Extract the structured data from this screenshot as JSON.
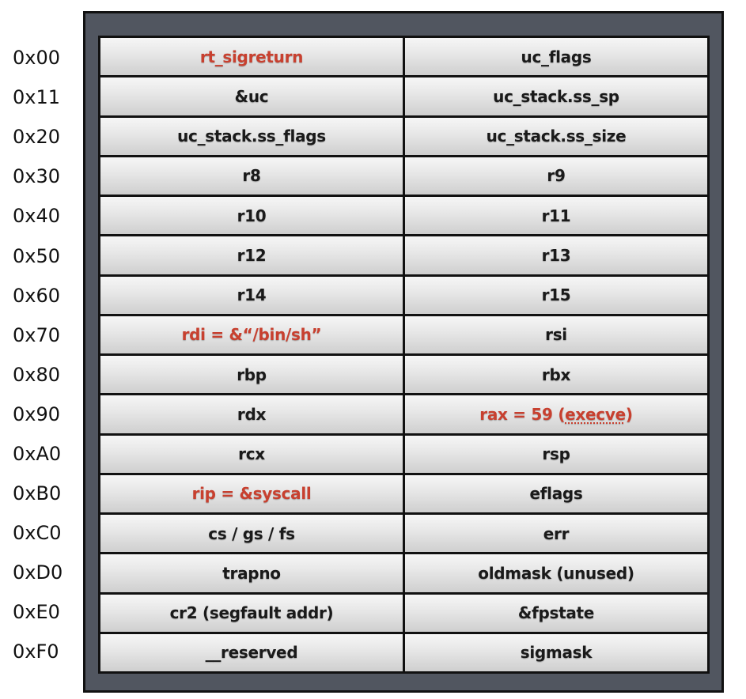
{
  "highlight_color": "#c8402f",
  "frame_color": "#515660",
  "rows": [
    {
      "offset": "0x00",
      "left": "rt_sigreturn",
      "right": "uc_flags",
      "left_highlight": true,
      "right_highlight": false
    },
    {
      "offset": "0x11",
      "left": "&uc",
      "right": "uc_stack.ss_sp",
      "left_highlight": false,
      "right_highlight": false
    },
    {
      "offset": "0x20",
      "left": "uc_stack.ss_flags",
      "right": "uc_stack.ss_size",
      "left_highlight": false,
      "right_highlight": false
    },
    {
      "offset": "0x30",
      "left": "r8",
      "right": "r9",
      "left_highlight": false,
      "right_highlight": false
    },
    {
      "offset": "0x40",
      "left": "r10",
      "right": "r11",
      "left_highlight": false,
      "right_highlight": false
    },
    {
      "offset": "0x50",
      "left": "r12",
      "right": "r13",
      "left_highlight": false,
      "right_highlight": false
    },
    {
      "offset": "0x60",
      "left": "r14",
      "right": "r15",
      "left_highlight": false,
      "right_highlight": false
    },
    {
      "offset": "0x70",
      "left": "rdi = &“/bin/sh”",
      "right": "rsi",
      "left_highlight": true,
      "right_highlight": false
    },
    {
      "offset": "0x80",
      "left": "rbp",
      "right": "rbx",
      "left_highlight": false,
      "right_highlight": false
    },
    {
      "offset": "0x90",
      "left": "rdx",
      "right_prefix": "rax = 59 (",
      "right_spell": "execve",
      "right_suffix": ")",
      "right": "rax = 59 (execve)",
      "left_highlight": false,
      "right_highlight": true
    },
    {
      "offset": "0xA0",
      "left": "rcx",
      "right": "rsp",
      "left_highlight": false,
      "right_highlight": false
    },
    {
      "offset": "0xB0",
      "left": "rip = &syscall",
      "right": "eflags",
      "left_highlight": true,
      "right_highlight": false
    },
    {
      "offset": "0xC0",
      "left": "cs / gs / fs",
      "right": "err",
      "left_highlight": false,
      "right_highlight": false
    },
    {
      "offset": "0xD0",
      "left": "trapno",
      "right": "oldmask (unused)",
      "left_highlight": false,
      "right_highlight": false
    },
    {
      "offset": "0xE0",
      "left": "cr2 (segfault addr)",
      "right": "&fpstate",
      "left_highlight": false,
      "right_highlight": false
    },
    {
      "offset": "0xF0",
      "left": "__reserved",
      "right": "sigmask",
      "left_highlight": false,
      "right_highlight": false
    }
  ]
}
